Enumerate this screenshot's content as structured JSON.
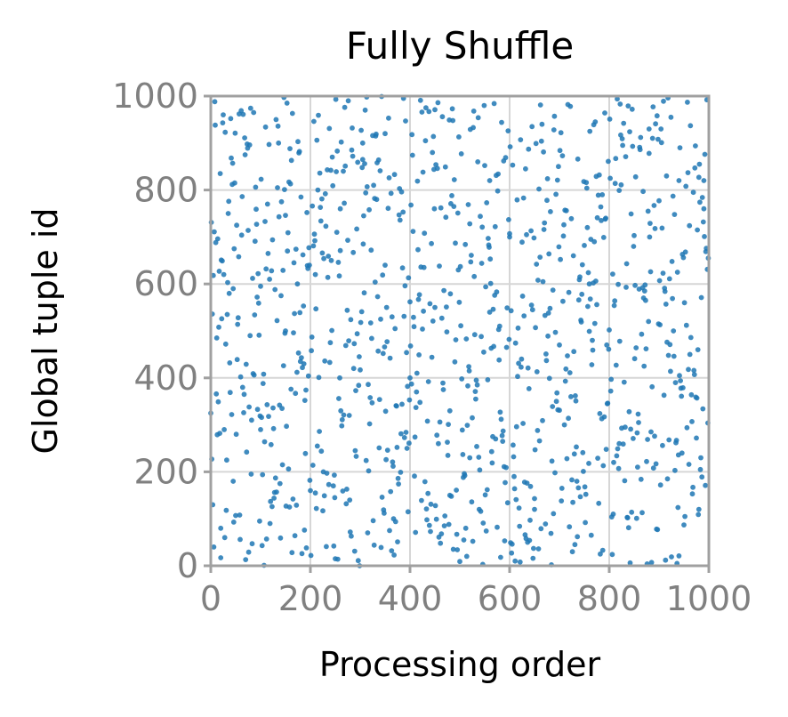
{
  "chart_data": {
    "type": "scatter",
    "title": "Fully Shuffle",
    "xlabel": "Processing order",
    "ylabel": "Global tuple id",
    "xlim": [
      0,
      1000
    ],
    "ylim": [
      0,
      1000
    ],
    "xticks": [
      "0",
      "200",
      "400",
      "600",
      "800",
      "1000"
    ],
    "yticks": [
      "0",
      "200",
      "400",
      "600",
      "800",
      "1000"
    ],
    "grid": true,
    "legend": "none",
    "series": [
      {
        "color": "#1f77b4",
        "n_points": 1000,
        "distribution": "uniform-random permutation",
        "points_sample": [
          [
            20,
            80
          ],
          [
            45,
            180
          ],
          [
            100,
            290
          ],
          [
            150,
            500
          ],
          [
            210,
            620
          ],
          [
            260,
            760
          ],
          [
            305,
            900
          ],
          [
            350,
            640
          ],
          [
            400,
            400
          ],
          [
            450,
            550
          ],
          [
            480,
            330
          ],
          [
            520,
            230
          ],
          [
            560,
            820
          ],
          [
            600,
            700
          ],
          [
            650,
            120
          ],
          [
            700,
            470
          ],
          [
            760,
            600
          ],
          [
            820,
            260
          ],
          [
            880,
            930
          ],
          [
            940,
            820
          ],
          [
            980,
            120
          ],
          [
            990,
            760
          ]
        ]
      }
    ]
  }
}
